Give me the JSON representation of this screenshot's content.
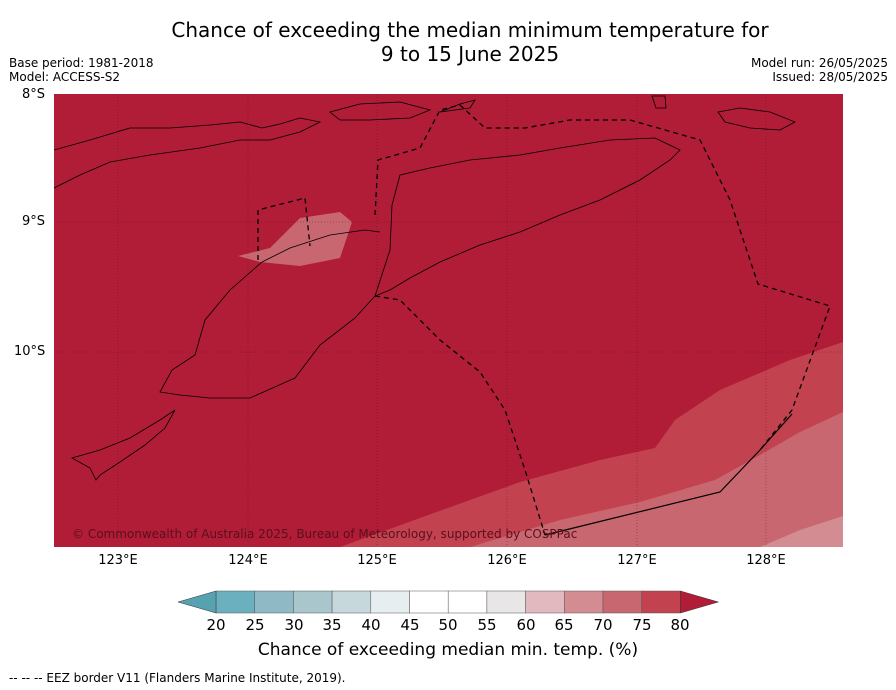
{
  "header": {
    "title_line1": "Chance of exceeding the median minimum temperature for",
    "title_line2": "9 to 15 June 2025",
    "base_period": "Base period: 1981-2018",
    "model": "Model: ACCESS-S2",
    "model_run": "Model run: 26/05/2025",
    "issued": "Issued: 28/05/2025"
  },
  "map": {
    "lat_labels": [
      "8°S",
      "9°S",
      "10°S"
    ],
    "lon_labels": [
      "123°E",
      "124°E",
      "125°E",
      "126°E",
      "127°E",
      "128°E"
    ],
    "copyright": "© Commonwealth of Australia 2025, Bureau of Meteorology, supported by COSPPac",
    "colors": {
      "above_80": "#b11c37",
      "c75_80": "#c2434f",
      "c70_75": "#c86770",
      "c65_70": "#d38c92",
      "border": "#000000"
    }
  },
  "colorbar": {
    "labels": [
      "20",
      "25",
      "30",
      "35",
      "40",
      "45",
      "50",
      "55",
      "60",
      "65",
      "70",
      "75",
      "80"
    ],
    "colors": [
      "#6bb0be",
      "#8fb9c5",
      "#a8c6cc",
      "#c6d8dc",
      "#e6eef0",
      "#ffffff",
      "#ffffff",
      "#e8e6e6",
      "#e2b9bf",
      "#d38c92",
      "#c86770",
      "#c2434f"
    ],
    "low_extend_color": "#57a2b1",
    "high_extend_color": "#b11c37",
    "title": "Chance of exceeding median min. temp. (%)"
  },
  "footer": {
    "eez_legend": "--  --  -- EEZ border V11 (Flanders Marine Institute, 2019)."
  }
}
